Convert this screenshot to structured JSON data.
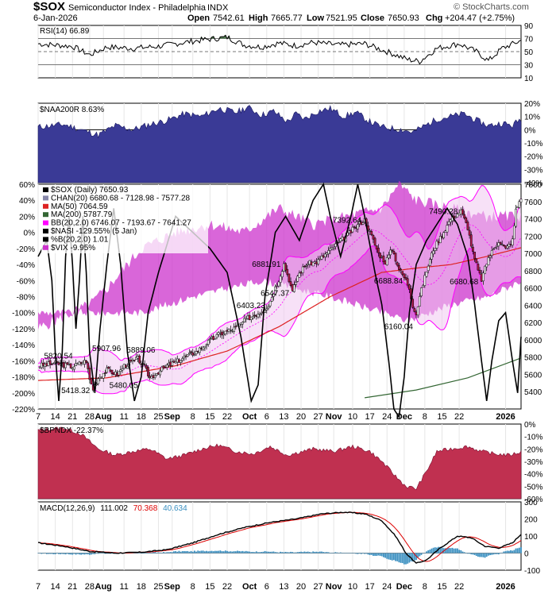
{
  "header": {
    "symbol": "$SOX",
    "name": "Semiconductor Index - Philadelphia",
    "exchange": "INDX",
    "date": "6-Jan-2026",
    "open_label": "Open",
    "open": "7542.61",
    "high_label": "High",
    "high": "7665.77",
    "low_label": "Low",
    "low": "7521.95",
    "close_label": "Close",
    "close": "7650.93",
    "chg_label": "Chg",
    "chg": "+204.47 (+2.75%)",
    "watermark": "© StockCharts.com"
  },
  "colors": {
    "rsi_line": "#000000",
    "rsi_overbought_fill": "#4f7a4f",
    "breadth_fill": "#3a3a96",
    "bollinger_band": "#ff00ff",
    "bollinger_fill": "#f0c8f0",
    "vix_fill": "#cc33cc",
    "ma50": "#dd2222",
    "ma200": "#336633",
    "nasi": "#000000",
    "channel_fill": "#dcdcea",
    "candle_up": "#ffffff",
    "candle_down": "#b01848",
    "bpndx_fill": "#c03050",
    "macd_line": "#000000",
    "macd_signal": "#dd0000",
    "macd_hist": "#3a8fc0"
  },
  "chart_data": {
    "type": "line",
    "x_labels": [
      "7",
      "14",
      "21",
      "28",
      "Aug",
      "11",
      "18",
      "25",
      "Sep",
      "8",
      "15",
      "22",
      "Oct",
      "6",
      "13",
      "20",
      "27",
      "Nov",
      "10",
      "17",
      "24",
      "Dec",
      "8",
      "15",
      "22",
      "2026"
    ],
    "panels": [
      {
        "id": "rsi",
        "label": "RSI(14) 66.89",
        "ylim": [
          10,
          90
        ],
        "yticks": [
          10,
          30,
          50,
          70,
          90
        ],
        "reference_lines": [
          30,
          50,
          70
        ],
        "last_value": 66.89
      },
      {
        "id": "naa200r",
        "label": "$NAA200R 8.63%",
        "ylim": [
          -40,
          20
        ],
        "yticks": [
          "-40%",
          "-30%",
          "-20%",
          "-10%",
          "0%",
          "10%",
          "20%"
        ],
        "last_value": 8.63
      },
      {
        "id": "price",
        "legend": [
          "$SOX (Daily) 7650.93",
          "CHAN(20) 6680.68 - 7128.98 - 7577.28",
          "MA(50) 7064.59",
          "MA(200) 5787.79",
          "BB(20,2.0) 6746.07 - 7193.67 - 7641.27",
          "$NASI -129.55% (5 Jan)",
          "%B(20,2.0) 1.01",
          "$VIX -9.95%"
        ],
        "ylim_price": [
          5200,
          7800
        ],
        "yticks_price": [
          5400,
          5600,
          5800,
          6000,
          6200,
          6400,
          6600,
          6800,
          7000,
          7200,
          7400,
          7600,
          7800
        ],
        "ylim_pct": [
          -220,
          60
        ],
        "yticks_pct": [
          "60%",
          "40%",
          "20%",
          "0%",
          "-20%",
          "-40%",
          "-60%",
          "-80%",
          "-100%",
          "-120%",
          "-140%",
          "-160%",
          "-180%",
          "-200%",
          "-220%"
        ],
        "annotations": [
          "5820.54",
          "5418.32",
          "5907.96",
          "5480.05",
          "5889.06",
          "6403.23",
          "6881.91",
          "6547.37",
          "7392.64",
          "6688.84",
          "6160.04",
          "7490.28",
          "6680.68"
        ],
        "close_path": [
          [
            0,
            5700
          ],
          [
            10,
            5730
          ],
          [
            20,
            5690
          ],
          [
            28,
            5760
          ],
          [
            30,
            5540
          ],
          [
            32,
            5430
          ],
          [
            35,
            5560
          ],
          [
            40,
            5650
          ],
          [
            46,
            5600
          ],
          [
            50,
            5700
          ],
          [
            58,
            5780
          ],
          [
            62,
            5680
          ],
          [
            65,
            5560
          ],
          [
            70,
            5630
          ],
          [
            75,
            5700
          ],
          [
            80,
            5740
          ],
          [
            85,
            5800
          ],
          [
            92,
            5860
          ],
          [
            98,
            5960
          ],
          [
            105,
            6060
          ],
          [
            115,
            6140
          ],
          [
            122,
            6250
          ],
          [
            130,
            6330
          ],
          [
            134,
            6400
          ],
          [
            137,
            6560
          ],
          [
            140,
            6700
          ],
          [
            143,
            6880
          ],
          [
            146,
            6700
          ],
          [
            148,
            6550
          ],
          [
            151,
            6740
          ],
          [
            156,
            6880
          ],
          [
            162,
            6900
          ],
          [
            170,
            7040
          ],
          [
            178,
            7180
          ],
          [
            186,
            7330
          ],
          [
            190,
            7390
          ],
          [
            194,
            7200
          ],
          [
            198,
            7000
          ],
          [
            202,
            6900
          ],
          [
            206,
            7050
          ],
          [
            210,
            6820
          ],
          [
            214,
            6690
          ],
          [
            216,
            6600
          ],
          [
            218,
            6400
          ],
          [
            220,
            6300
          ],
          [
            222,
            6500
          ],
          [
            226,
            6800
          ],
          [
            230,
            7050
          ],
          [
            236,
            7250
          ],
          [
            240,
            7400
          ],
          [
            246,
            7490
          ],
          [
            250,
            7300
          ],
          [
            253,
            7000
          ],
          [
            256,
            6800
          ],
          [
            258,
            6700
          ],
          [
            262,
            6950
          ],
          [
            268,
            7150
          ],
          [
            272,
            7050
          ],
          [
            276,
            7150
          ],
          [
            278,
            7500
          ],
          [
            281,
            7651
          ]
        ],
        "ma50_path": [
          [
            0,
            5530
          ],
          [
            40,
            5560
          ],
          [
            80,
            5700
          ],
          [
            110,
            5870
          ],
          [
            140,
            6150
          ],
          [
            170,
            6500
          ],
          [
            200,
            6780
          ],
          [
            220,
            6830
          ],
          [
            240,
            6870
          ],
          [
            260,
            6960
          ],
          [
            281,
            7065
          ]
        ],
        "ma200_path": [
          [
            190,
            5330
          ],
          [
            220,
            5420
          ],
          [
            250,
            5560
          ],
          [
            281,
            5790
          ]
        ],
        "nasi_path": [
          [
            0,
            -30
          ],
          [
            5,
            -10
          ],
          [
            8,
            -60
          ],
          [
            10,
            -150
          ],
          [
            12,
            -210
          ],
          [
            14,
            -150
          ],
          [
            16,
            -30
          ],
          [
            18,
            20
          ],
          [
            20,
            -40
          ],
          [
            22,
            -120
          ],
          [
            24,
            -60
          ],
          [
            26,
            20
          ],
          [
            28,
            -50
          ],
          [
            30,
            -150
          ],
          [
            33,
            -200
          ],
          [
            36,
            -120
          ],
          [
            40,
            -40
          ],
          [
            44,
            30
          ],
          [
            48,
            -40
          ],
          [
            52,
            -150
          ],
          [
            56,
            -210
          ],
          [
            60,
            -180
          ],
          [
            64,
            -100
          ],
          [
            70,
            -50
          ],
          [
            80,
            20
          ],
          [
            90,
            0
          ],
          [
            100,
            -20
          ],
          [
            110,
            -50
          ],
          [
            118,
            -130
          ],
          [
            124,
            -210
          ],
          [
            128,
            -190
          ],
          [
            132,
            -80
          ],
          [
            138,
            0
          ],
          [
            144,
            20
          ],
          [
            152,
            -10
          ],
          [
            160,
            40
          ],
          [
            166,
            60
          ],
          [
            170,
            20
          ],
          [
            176,
            -30
          ],
          [
            182,
            20
          ],
          [
            186,
            60
          ],
          [
            190,
            20
          ],
          [
            196,
            -50
          ],
          [
            200,
            -90
          ],
          [
            204,
            -160
          ],
          [
            207,
            -220
          ],
          [
            210,
            -230
          ],
          [
            213,
            -180
          ],
          [
            216,
            -100
          ],
          [
            220,
            -40
          ],
          [
            226,
            -10
          ],
          [
            232,
            10
          ],
          [
            238,
            30
          ],
          [
            244,
            10
          ],
          [
            250,
            -30
          ],
          [
            254,
            -90
          ],
          [
            258,
            -160
          ],
          [
            261,
            -210
          ],
          [
            264,
            -160
          ],
          [
            268,
            -110
          ],
          [
            272,
            -100
          ],
          [
            276,
            -160
          ],
          [
            279,
            -200
          ],
          [
            281,
            -130
          ]
        ]
      },
      {
        "id": "bpndx",
        "label": "$BPNDX -22.37%",
        "ylim": [
          -60,
          0
        ],
        "yticks": [
          "0%",
          "-10%",
          "-20%",
          "-30%",
          "-40%",
          "-50%",
          "-60%"
        ],
        "last_value": -22.37
      },
      {
        "id": "macd",
        "label_prefix": "MACD(12,26,9)",
        "macd_value": "111.002",
        "signal_value": "70.368",
        "hist_value": "40.634",
        "ylim": [
          -100,
          300
        ],
        "yticks": [
          -100,
          0,
          100,
          200,
          300
        ],
        "last_values": {
          "macd": 111.002,
          "signal": 70.368,
          "hist": 40.634
        }
      }
    ]
  }
}
